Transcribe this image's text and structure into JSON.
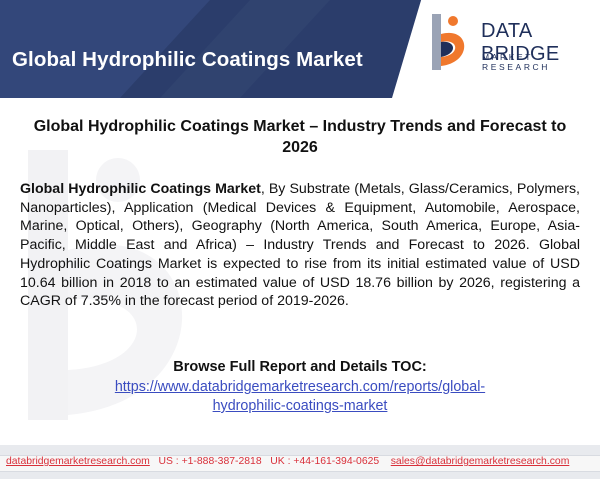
{
  "banner": {
    "title": "Global Hydrophilic Coatings Market",
    "colors": {
      "background": "#2b3d6b",
      "stripe": "#3a5287"
    }
  },
  "logo": {
    "name": "DATA BRIDGE",
    "subtitle": "MARKET RESEARCH",
    "icon": "data-bridge-logo-icon",
    "colors": {
      "orange": "#f0782d",
      "navy": "#1f2f5a",
      "gray": "#9aa3b5"
    }
  },
  "document": {
    "heading": "Global Hydrophilic Coatings Market – Industry Trends and Forecast to 2026",
    "paragraph_lead": "Global Hydrophilic Coatings Market",
    "paragraph_body": ", By Substrate (Metals, Glass/Ceramics, Polymers, Nanoparticles), Application (Medical Devices & Equipment, Automobile, Aerospace, Marine, Optical, Others), Geography (North America, South America, Europe, Asia-Pacific, Middle East and Africa) – Industry Trends and Forecast to 2026. Global Hydrophilic Coatings Market is expected to rise from its initial estimated value of USD 10.64 billion in 2018 to an estimated value of USD 18.76 billion by 2026, registering a CAGR of 7.35% in the forecast period of 2019-2026.",
    "toc_label": "Browse Full Report  and Details TOC:",
    "toc_link": "https://www.databridgemarketresearch.com/reports/global-hydrophilic-coatings-market"
  },
  "footer": {
    "website": "databridgemarketresearch.com",
    "us_phone": "US : +1-888-387-2818",
    "uk_phone": "UK : +44-161-394-0625",
    "email": "sales@databridgemarketresearch.com",
    "text_color": "#d9303a"
  }
}
